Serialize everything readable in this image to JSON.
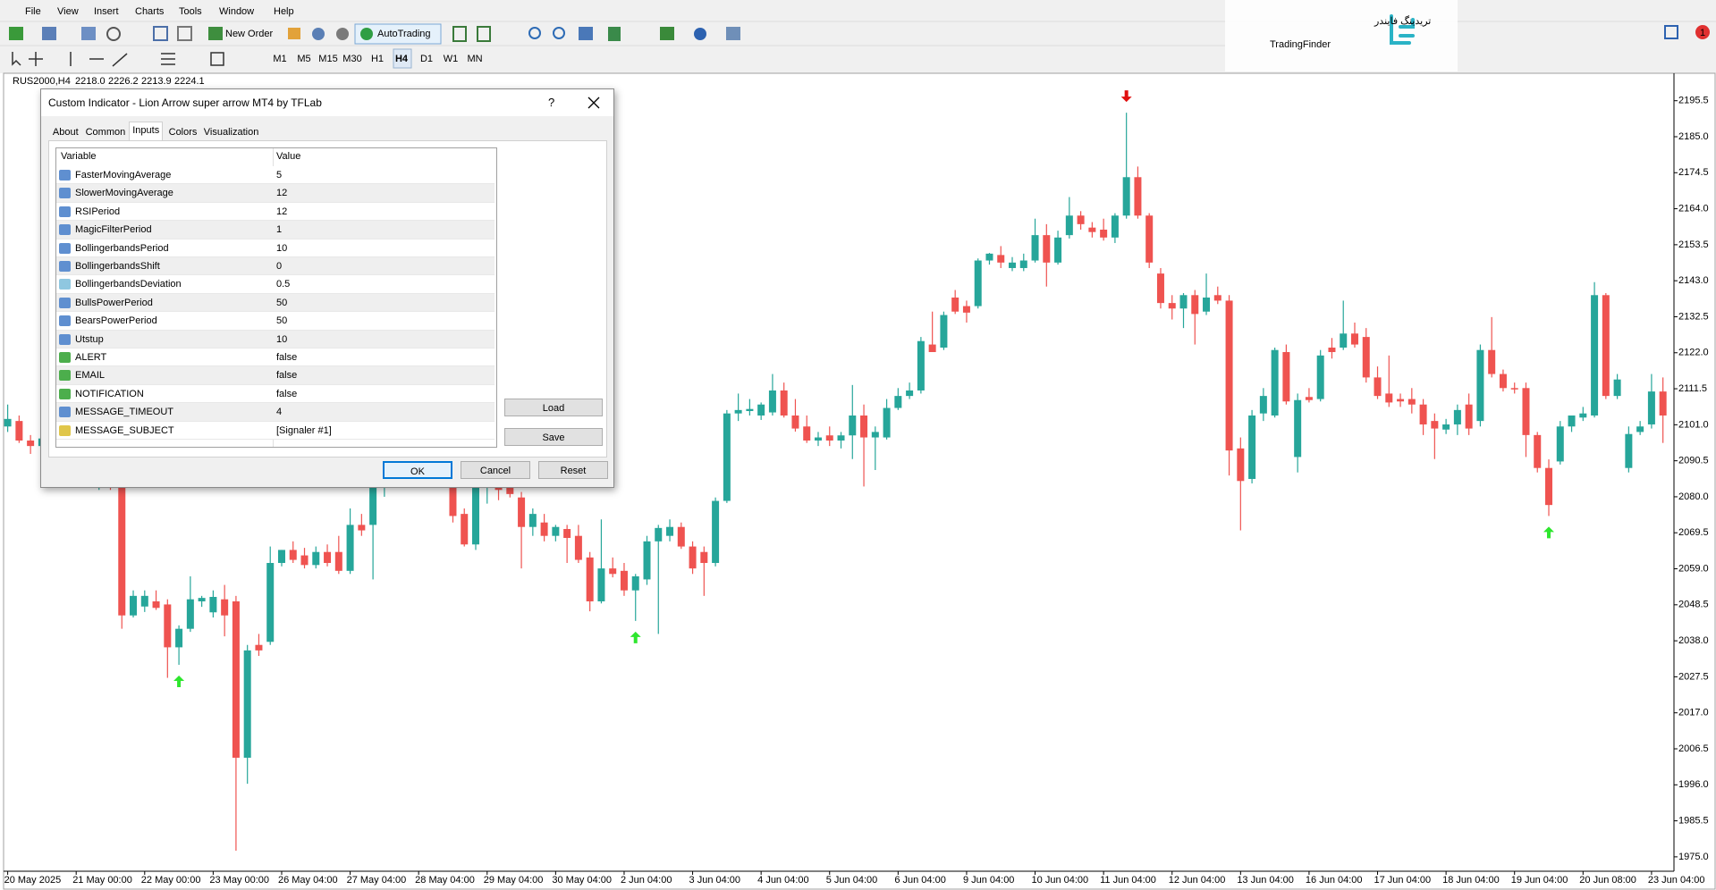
{
  "menu": [
    "File",
    "View",
    "Insert",
    "Charts",
    "Tools",
    "Window",
    "Help"
  ],
  "toolbar": {
    "new_order": "New Order",
    "auto_trading": "AutoTrading",
    "timeframes": [
      "M1",
      "M5",
      "M15",
      "M30",
      "H1",
      "H4",
      "D1",
      "W1",
      "MN"
    ],
    "active_timeframe": "H4"
  },
  "logo": {
    "persian": "تریدینگ فایندر",
    "latin": "TradingFinder"
  },
  "notifications": "1",
  "chart": {
    "type": "candlestick",
    "symbol": "RUS2000,H4",
    "ohlc": [
      "2218.0",
      "2226.2",
      "2213.9",
      "2224.1"
    ],
    "up_color": "#26a69a",
    "down_color": "#ef5350",
    "ylim": [
      1970.8,
      2203.5
    ],
    "yticks": [
      2195.5,
      {
        "value": 2185,
        "label": "2185.0"
      },
      2174.5,
      {
        "value": 2164,
        "label": "2164.0"
      },
      2153.5,
      {
        "value": 2143,
        "label": "2143.0"
      },
      2132.5,
      {
        "value": 2122,
        "label": "2122.0"
      },
      2111.5,
      {
        "value": 2101,
        "label": "2101.0"
      },
      2090.5,
      {
        "value": 2080,
        "label": "2080.0"
      },
      2069.5,
      {
        "value": 2059,
        "label": "2059.0"
      },
      2048.5,
      {
        "value": 2038,
        "label": "2038.0"
      },
      2027.5,
      {
        "value": 2017,
        "label": "2017.0"
      },
      2006.5,
      {
        "value": 1996,
        "label": "1996.0"
      },
      1985.5,
      {
        "value": 1975,
        "label": "1975.0"
      }
    ],
    "dates": [
      "20 May 2025",
      "21 May 00:00",
      "22 May 00:00",
      "23 May 00:00",
      "26 May 04:00",
      "27 May 04:00",
      "28 May 04:00",
      "29 May 04:00",
      "30 May 04:00",
      "2 Jun 04:00",
      "3 Jun 04:00",
      "4 Jun 04:00",
      "5 Jun 04:00",
      "6 Jun 04:00",
      "9 Jun 04:00",
      "10 Jun 04:00",
      "11 Jun 04:00",
      "12 Jun 04:00",
      "13 Jun 04:00",
      "16 Jun 04:00",
      "17 Jun 04:00",
      "18 Jun 04:00",
      "19 Jun 04:00",
      "20 Jun 08:00",
      "23 Jun 04:00"
    ],
    "candles": [
      [
        2100.5,
        2106.9,
        2098.9,
        2102.7
      ],
      [
        2102.1,
        2103.7,
        2095.7,
        2096.4
      ],
      [
        2096.4,
        2098.0,
        2092.5,
        2094.8
      ],
      [
        2094.8,
        2099.0,
        2090.0,
        2097.0
      ],
      [
        2097.0,
        2101.5,
        2093.0,
        2094.0
      ],
      [
        2094.0,
        2096.0,
        2087.5,
        2089.0
      ],
      [
        2089.0,
        2093.5,
        2086.0,
        2092.0
      ],
      [
        2092.0,
        2094.0,
        2083.5,
        2085.0
      ],
      [
        2085.0,
        2090.0,
        2082.0,
        2087.5
      ],
      [
        2087.5,
        2090.0,
        2082.0,
        2084.5
      ],
      [
        2084.6,
        2086.2,
        2041.5,
        2045.4
      ],
      [
        2045.4,
        2052.7,
        2044.8,
        2051.1
      ],
      [
        2048.0,
        2052.7,
        2046.4,
        2051.1
      ],
      [
        2049.5,
        2052.7,
        2047.0,
        2047.6
      ],
      [
        2048.6,
        2050.1,
        2027.2,
        2036.1
      ],
      [
        2036.1,
        2042.5,
        2031.0,
        2041.5
      ],
      [
        2041.5,
        2056.8,
        2040.6,
        2050.1
      ],
      [
        2049.5,
        2051.1,
        2047.9,
        2050.5
      ],
      [
        2046.3,
        2052.7,
        2044.8,
        2050.8
      ],
      [
        2050.1,
        2054.3,
        2039.3,
        2045.4
      ],
      [
        2049.5,
        2051.1,
        1976.8,
        2003.9
      ],
      [
        2003.9,
        2036.8,
        1996.3,
        2035.2
      ],
      [
        2036.8,
        2040.0,
        2033.6,
        2035.2
      ],
      [
        2037.7,
        2065.5,
        2036.8,
        2060.7
      ],
      [
        2060.7,
        2064.5,
        2059.7,
        2064.5
      ],
      [
        2064.5,
        2067.0,
        2060.7,
        2061.6
      ],
      [
        2062.9,
        2065.1,
        2059.1,
        2060.1
      ],
      [
        2060.1,
        2065.5,
        2059.1,
        2063.9
      ],
      [
        2063.9,
        2066.1,
        2059.7,
        2060.7
      ],
      [
        2063.9,
        2068.6,
        2057.5,
        2058.4
      ],
      [
        2058.4,
        2076.6,
        2057.5,
        2071.8
      ],
      [
        2071.8,
        2075.0,
        2068.6,
        2070.2
      ],
      [
        2071.8,
        2087.8,
        2055.9,
        2083.0
      ],
      [
        2083.0,
        2090.0,
        2080.0,
        2087.0
      ],
      [
        2087.0,
        2092.5,
        2084.0,
        2090.5
      ],
      [
        2090.5,
        2094.0,
        2085.5,
        2088.0
      ],
      [
        2088.0,
        2093.0,
        2084.0,
        2091.5
      ],
      [
        2091.5,
        2096.0,
        2088.0,
        2089.0
      ],
      [
        2089.0,
        2092.0,
        2083.0,
        2084.5
      ],
      [
        2083.0,
        2084.6,
        2072.5,
        2074.4
      ],
      [
        2075.0,
        2076.6,
        2065.5,
        2066.1
      ],
      [
        2066.1,
        2087.8,
        2064.5,
        2083.0
      ],
      [
        2083.0,
        2088.5,
        2078.0,
        2086.0
      ],
      [
        2086.0,
        2090.0,
        2079.0,
        2082.0
      ],
      [
        2083.0,
        2084.6,
        2079.8,
        2080.8
      ],
      [
        2079.8,
        2081.4,
        2059.1,
        2071.2
      ],
      [
        2071.2,
        2076.6,
        2068.6,
        2075.0
      ],
      [
        2072.5,
        2075.0,
        2067.0,
        2068.6
      ],
      [
        2068.6,
        2071.8,
        2067.0,
        2071.2
      ],
      [
        2070.6,
        2071.8,
        2060.7,
        2068.0
      ],
      [
        2068.6,
        2071.8,
        2060.7,
        2061.6
      ],
      [
        2062.3,
        2063.9,
        2046.6,
        2049.5
      ],
      [
        2049.5,
        2073.4,
        2048.9,
        2059.1
      ],
      [
        2059.1,
        2062.3,
        2056.5,
        2057.5
      ],
      [
        2058.4,
        2060.7,
        2051.1,
        2052.7
      ],
      [
        2052.7,
        2057.5,
        2043.8,
        2056.8
      ],
      [
        2055.9,
        2068.6,
        2054.3,
        2067.0
      ],
      [
        2067.0,
        2071.8,
        2040.0,
        2070.9
      ],
      [
        2068.6,
        2073.4,
        2067.0,
        2071.2
      ],
      [
        2071.2,
        2072.5,
        2064.8,
        2065.5
      ],
      [
        2065.5,
        2067.0,
        2057.5,
        2059.1
      ],
      [
        2063.9,
        2065.5,
        2051.1,
        2060.7
      ],
      [
        2060.7,
        2079.8,
        2059.7,
        2078.8
      ],
      [
        2078.8,
        2105.3,
        2078.2,
        2104.3
      ],
      [
        2104.3,
        2110.1,
        2102.1,
        2105.3
      ],
      [
        2105.0,
        2108.5,
        2103.7,
        2105.6
      ],
      [
        2103.7,
        2107.5,
        2102.4,
        2106.9
      ],
      [
        2104.6,
        2115.8,
        2103.7,
        2111.0
      ],
      [
        2111.0,
        2113.3,
        2103.1,
        2103.7
      ],
      [
        2103.7,
        2108.5,
        2099.0,
        2099.9
      ],
      [
        2100.5,
        2103.7,
        2095.7,
        2096.4
      ],
      [
        2096.4,
        2098.9,
        2094.8,
        2097.3
      ],
      [
        2097.9,
        2100.5,
        2094.8,
        2096.4
      ],
      [
        2096.4,
        2098.9,
        2094.1,
        2097.9
      ],
      [
        2097.9,
        2112.6,
        2091.0,
        2103.7
      ],
      [
        2103.7,
        2106.9,
        2083.0,
        2097.3
      ],
      [
        2097.3,
        2100.5,
        2087.8,
        2098.9
      ],
      [
        2097.3,
        2108.5,
        2096.7,
        2105.9
      ],
      [
        2105.9,
        2111.7,
        2105.3,
        2109.4
      ],
      [
        2109.4,
        2113.3,
        2108.5,
        2111.0
      ],
      [
        2111.0,
        2126.6,
        2110.1,
        2125.4
      ],
      [
        2124.4,
        2134.0,
        2122.2,
        2122.2
      ],
      [
        2123.5,
        2134.0,
        2122.8,
        2133.0
      ],
      [
        2138.1,
        2140.3,
        2133.3,
        2134.0
      ],
      [
        2135.6,
        2137.2,
        2130.8,
        2133.7
      ],
      [
        2135.6,
        2149.5,
        2134.9,
        2148.9
      ],
      [
        2148.9,
        2151.1,
        2147.7,
        2150.9
      ],
      [
        2150.5,
        2153.1,
        2146.7,
        2148.3
      ],
      [
        2146.7,
        2149.9,
        2145.8,
        2148.3
      ],
      [
        2146.7,
        2150.9,
        2145.8,
        2148.9
      ],
      [
        2148.9,
        2161.1,
        2148.3,
        2156.3
      ],
      [
        2156.3,
        2159.5,
        2141.3,
        2148.3
      ],
      [
        2148.3,
        2157.6,
        2147.7,
        2155.6
      ],
      [
        2156.3,
        2167.4,
        2155.3,
        2162.0
      ],
      [
        2162.0,
        2163.3,
        2157.9,
        2159.5
      ],
      [
        2158.5,
        2160.1,
        2155.6,
        2157.2
      ],
      [
        2157.9,
        2161.1,
        2154.7,
        2155.6
      ],
      [
        2155.6,
        2162.7,
        2154.0,
        2162.0
      ],
      [
        2162.0,
        2192.0,
        2161.1,
        2173.2
      ],
      [
        2173.2,
        2176.3,
        2161.1,
        2162.0
      ],
      [
        2162.0,
        2162.7,
        2146.7,
        2148.3
      ],
      [
        2145.1,
        2146.7,
        2134.9,
        2136.5
      ],
      [
        2136.5,
        2138.8,
        2131.7,
        2134.9
      ],
      [
        2134.9,
        2139.4,
        2129.2,
        2138.8
      ],
      [
        2138.8,
        2140.3,
        2124.4,
        2133.3
      ],
      [
        2134.0,
        2145.1,
        2133.0,
        2138.1
      ],
      [
        2138.8,
        2141.3,
        2136.2,
        2137.2
      ],
      [
        2137.2,
        2138.8,
        2086.2,
        2093.5
      ],
      [
        2094.1,
        2097.3,
        2070.2,
        2084.6
      ],
      [
        2085.2,
        2105.3,
        2083.9,
        2103.7
      ],
      [
        2104.3,
        2111.7,
        2102.1,
        2109.4
      ],
      [
        2103.7,
        2123.5,
        2103.1,
        2122.8
      ],
      [
        2122.2,
        2124.4,
        2106.9,
        2107.8
      ],
      [
        2091.6,
        2110.1,
        2087.1,
        2108.2
      ],
      [
        2109.1,
        2111.7,
        2107.5,
        2108.2
      ],
      [
        2108.5,
        2122.8,
        2107.8,
        2121.2
      ],
      [
        2123.5,
        2126.3,
        2120.3,
        2122.2
      ],
      [
        2123.5,
        2137.2,
        2122.8,
        2127.6
      ],
      [
        2127.6,
        2130.8,
        2123.5,
        2124.4
      ],
      [
        2126.6,
        2129.2,
        2113.3,
        2114.8
      ],
      [
        2114.8,
        2118.0,
        2108.5,
        2109.4
      ],
      [
        2110.1,
        2121.2,
        2106.2,
        2107.5
      ],
      [
        2108.5,
        2110.1,
        2106.2,
        2107.8
      ],
      [
        2108.5,
        2111.7,
        2104.3,
        2106.9
      ],
      [
        2106.9,
        2108.5,
        2098.0,
        2101.1
      ],
      [
        2102.1,
        2104.3,
        2091.0,
        2099.9
      ],
      [
        2099.6,
        2102.7,
        2098.3,
        2101.1
      ],
      [
        2101.1,
        2106.9,
        2098.0,
        2105.3
      ],
      [
        2106.9,
        2110.1,
        2098.0,
        2099.9
      ],
      [
        2102.1,
        2124.4,
        2100.5,
        2122.8
      ],
      [
        2122.8,
        2132.4,
        2114.8,
        2115.8
      ],
      [
        2115.8,
        2117.1,
        2110.7,
        2111.7
      ],
      [
        2111.7,
        2113.3,
        2110.1,
        2111.3
      ],
      [
        2111.7,
        2113.3,
        2091.6,
        2098.0
      ],
      [
        2098.0,
        2098.9,
        2087.1,
        2088.4
      ],
      [
        2088.4,
        2090.9,
        2074.4,
        2077.6
      ],
      [
        2090.3,
        2102.1,
        2089.4,
        2100.5
      ],
      [
        2100.5,
        2103.7,
        2098.9,
        2103.7
      ],
      [
        2103.1,
        2106.2,
        2102.1,
        2104.3
      ],
      [
        2103.7,
        2142.6,
        2103.1,
        2138.8
      ],
      [
        2138.8,
        2139.4,
        2108.5,
        2109.4
      ],
      [
        2109.4,
        2115.8,
        2108.5,
        2114.2
      ],
      [
        2088.4,
        2100.5,
        2087.1,
        2098.3
      ],
      [
        2098.9,
        2102.1,
        2098.0,
        2100.5
      ],
      [
        2101.1,
        2115.8,
        2099.9,
        2110.7
      ],
      [
        2110.7,
        2114.8,
        2095.7,
        2103.7
      ]
    ],
    "signals": [
      {
        "candle": 15,
        "direction": "up"
      },
      {
        "candle": 55,
        "direction": "up"
      },
      {
        "candle": 98,
        "direction": "down"
      },
      {
        "candle": 135,
        "direction": "up"
      }
    ],
    "signal_up_color": "#2ee62e",
    "signal_down_color": "#e01010"
  },
  "dialog": {
    "title": "Custom Indicator - Lion Arrow super arrow MT4 by TFLab",
    "help": "?",
    "tabs": [
      "About",
      "Common",
      "Inputs",
      "Colors",
      "Visualization"
    ],
    "active_tab": "Inputs",
    "columns": [
      "Variable",
      "Value"
    ],
    "rows": [
      {
        "variable": "FasterMovingAverage",
        "value": "5",
        "icon": "int"
      },
      {
        "variable": "SlowerMovingAverage",
        "value": "12",
        "icon": "int"
      },
      {
        "variable": "RSIPeriod",
        "value": "12",
        "icon": "int"
      },
      {
        "variable": "MagicFilterPeriod",
        "value": "1",
        "icon": "int"
      },
      {
        "variable": "BollingerbandsPeriod",
        "value": "10",
        "icon": "int"
      },
      {
        "variable": "BollingerbandsShift",
        "value": "0",
        "icon": "int"
      },
      {
        "variable": "BollingerbandsDeviation",
        "value": "0.5",
        "icon": "double"
      },
      {
        "variable": "BullsPowerPeriod",
        "value": "50",
        "icon": "int"
      },
      {
        "variable": "BearsPowerPeriod",
        "value": "50",
        "icon": "int"
      },
      {
        "variable": "Utstup",
        "value": "10",
        "icon": "int"
      },
      {
        "variable": "ALERT",
        "value": "false",
        "icon": "bool"
      },
      {
        "variable": "EMAIL",
        "value": "false",
        "icon": "bool"
      },
      {
        "variable": "NOTIFICATION",
        "value": "false",
        "icon": "bool"
      },
      {
        "variable": "MESSAGE_TIMEOUT",
        "value": "4",
        "icon": "int"
      },
      {
        "variable": "MESSAGE_SUBJECT",
        "value": "[Signaler #1]",
        "icon": "string"
      }
    ],
    "side_buttons": [
      "Load",
      "Save"
    ],
    "buttons": [
      "OK",
      "Cancel",
      "Reset"
    ]
  }
}
